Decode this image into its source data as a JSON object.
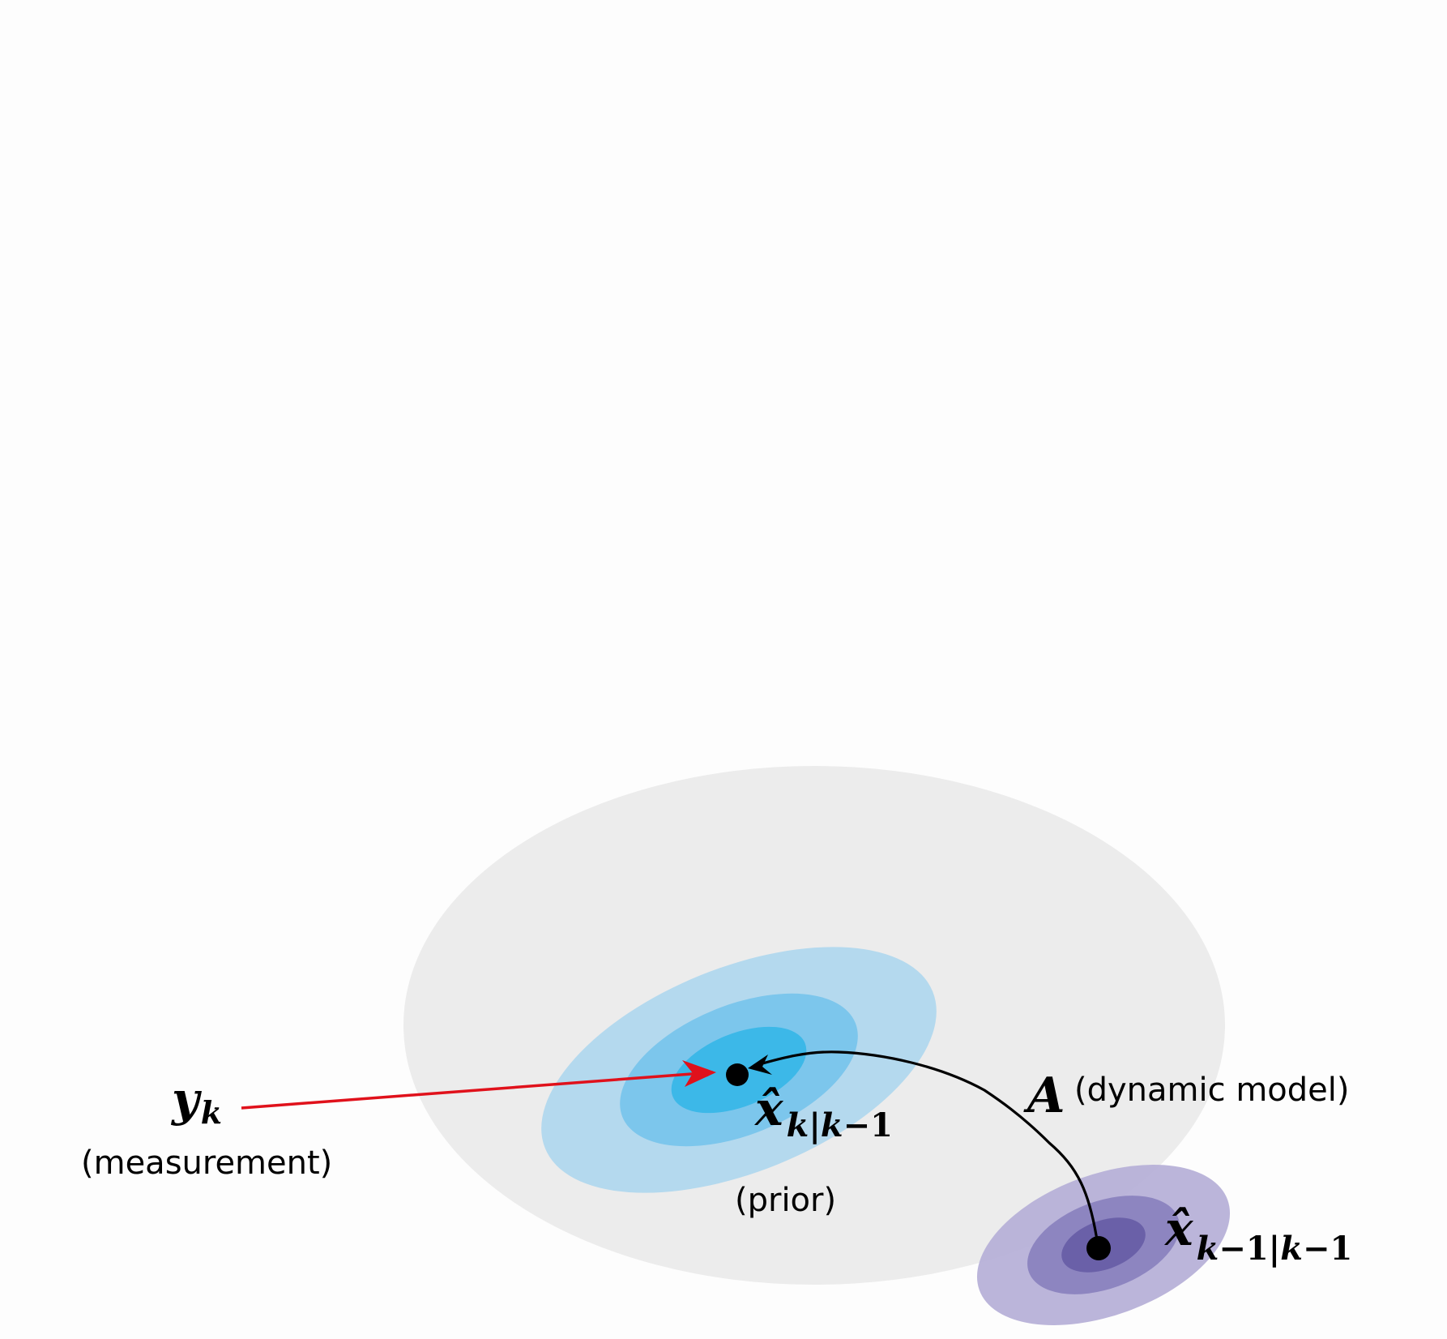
{
  "colors": {
    "background": "#fdfdfd",
    "large_cloud": "#ececec",
    "prior_outer": "#b4d9ee",
    "prior_middle": "#7cc6ec",
    "prior_inner": "#3cb8e8",
    "posterior_outer": "#b7b1d8",
    "posterior_middle": "#8d85c0",
    "posterior_inner": "#6a60a8",
    "measurement_arrow": "#e0111b",
    "dynamics_arrow": "#000000"
  },
  "labels": {
    "measurement_symbol": "y",
    "measurement_subscript": "k",
    "measurement_caption": "(measurement)",
    "prior_symbol": "x̂",
    "prior_subscript_pre": "k",
    "prior_subscript_sep": "|",
    "prior_subscript_post": "k",
    "prior_subscript_tail": "−1",
    "prior_caption": "(prior)",
    "model_symbol": "A",
    "model_caption": "(dynamic model)",
    "previous_symbol": "x̂",
    "previous_subscript_a": "k",
    "previous_subscript_b": "−1|",
    "previous_subscript_c": "k",
    "previous_subscript_d": "−1"
  }
}
